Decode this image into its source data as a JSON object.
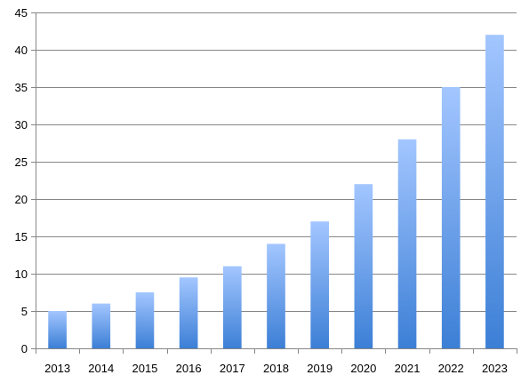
{
  "chart_data": {
    "type": "bar",
    "title": "",
    "xlabel": "",
    "ylabel": "",
    "categories": [
      "2013",
      "2014",
      "2015",
      "2016",
      "2017",
      "2018",
      "2019",
      "2020",
      "2021",
      "2022",
      "2023"
    ],
    "values": [
      5,
      6,
      7.5,
      9.5,
      11,
      14,
      17,
      22,
      28,
      35,
      42
    ],
    "ylim": [
      0,
      45
    ],
    "yticks": [
      "0",
      "5",
      "10",
      "15",
      "20",
      "25",
      "30",
      "35",
      "40",
      "45"
    ],
    "grid": true,
    "legend": "none",
    "colors": {
      "bar_top": "#a3c6ff",
      "bar_bottom": "#3c7fd6",
      "grid": "#878787",
      "text": "#000000"
    }
  }
}
